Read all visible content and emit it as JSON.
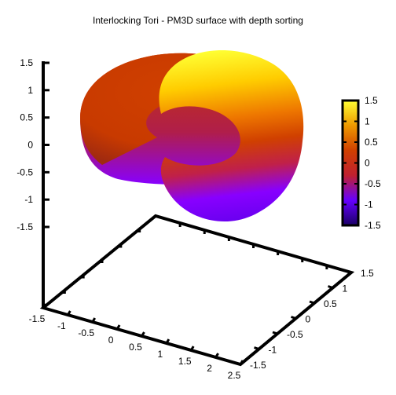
{
  "chart_data": {
    "type": "surface",
    "title": "Interlocking Tori - PM3D surface with depth sorting",
    "z_axis": {
      "ticks": [
        "1.5",
        "1",
        "0.5",
        "0",
        "-0.5",
        "-1",
        "-1.5"
      ],
      "range": [
        -1.5,
        1.5
      ]
    },
    "x_axis": {
      "ticks": [
        "-1.5",
        "-1",
        "-0.5",
        "0",
        "0.5",
        "1",
        "1.5",
        "2",
        "2.5"
      ],
      "range": [
        -1.5,
        2.5
      ]
    },
    "y_axis": {
      "ticks": [
        "-1.5",
        "-1",
        "-0.5",
        "0",
        "0.5",
        "1",
        "1.5"
      ],
      "range": [
        -1.5,
        1.5
      ]
    },
    "colorbar": {
      "ticks": [
        "1.5",
        "1",
        "0.5",
        "0",
        "-0.5",
        "-1",
        "-1.5"
      ],
      "range": [
        -1.5,
        1.5
      ],
      "palette": "pm3d-default"
    },
    "surfaces": [
      {
        "shape": "torus",
        "major_radius": 1,
        "minor_radius": 0.5,
        "center": [
          0,
          0,
          0
        ],
        "plane": "xy"
      },
      {
        "shape": "torus",
        "major_radius": 1,
        "minor_radius": 0.5,
        "center": [
          1,
          0,
          0
        ],
        "plane": "xz"
      }
    ],
    "grid": false,
    "border": true,
    "depth_sorting": true
  }
}
